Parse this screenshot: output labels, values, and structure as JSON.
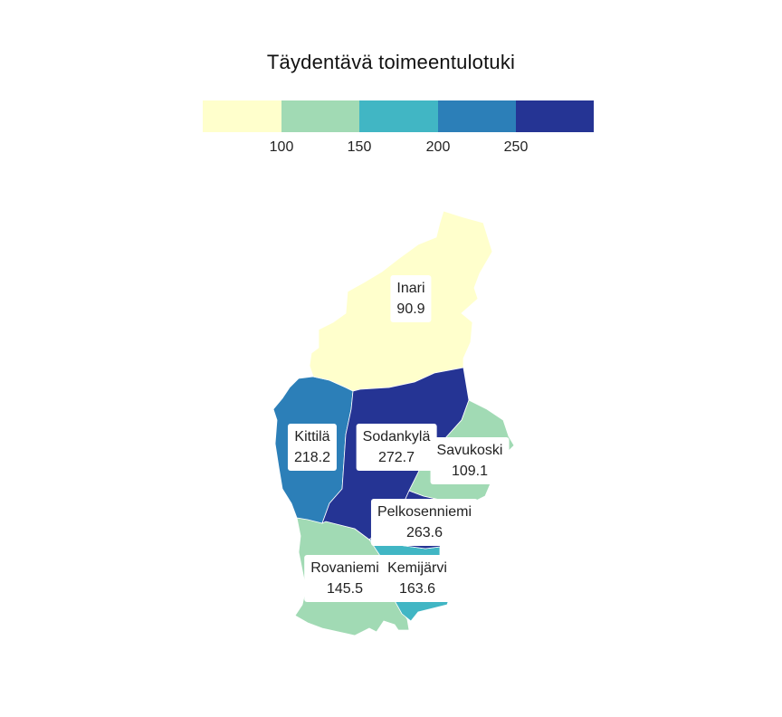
{
  "title": "Täydentävä toimeentulotuki",
  "legend": {
    "breaks": [
      "100",
      "150",
      "200",
      "250"
    ],
    "colors": [
      "#ffffcc",
      "#a1dab4",
      "#41b6c4",
      "#2c7fb8",
      "#253494"
    ]
  },
  "regions": [
    {
      "name": "Inari",
      "value": "90.9",
      "color": "#ffffcc"
    },
    {
      "name": "Kittilä",
      "value": "218.2",
      "color": "#2c7fb8"
    },
    {
      "name": "Sodankylä",
      "value": "272.7",
      "color": "#253494"
    },
    {
      "name": "Savukoski",
      "value": "109.1",
      "color": "#a1dab4"
    },
    {
      "name": "Pelkosenniemi",
      "value": "263.6",
      "color": "#253494"
    },
    {
      "name": "Rovaniemi",
      "value": "145.5",
      "color": "#a1dab4"
    },
    {
      "name": "Kemijärvi",
      "value": "163.6",
      "color": "#41b6c4"
    }
  ]
}
